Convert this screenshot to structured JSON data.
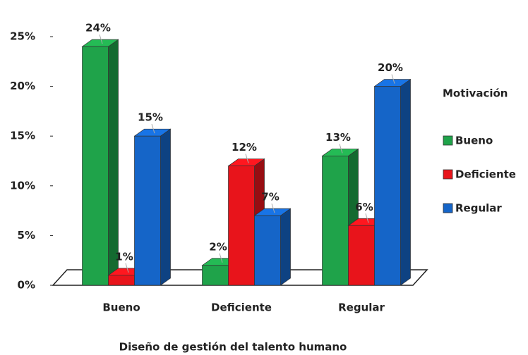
{
  "chart_data": {
    "type": "bar3d",
    "x_label": "Diseño de gestión del talento humano",
    "categories": [
      "Bueno",
      "Deficiente",
      "Regular"
    ],
    "legend_title": "Motivación",
    "series": [
      {
        "name": "Bueno",
        "color": "#1fa34a",
        "values": [
          24,
          2,
          13
        ],
        "value_labels": [
          "24%",
          "2%",
          "13%"
        ]
      },
      {
        "name": "Deficiente",
        "color": "#e8141b",
        "values": [
          1,
          12,
          6
        ],
        "value_labels": [
          "1%",
          "12%",
          "6%"
        ]
      },
      {
        "name": "Regular",
        "color": "#1565c8",
        "values": [
          15,
          7,
          20
        ],
        "value_labels": [
          "15%",
          "7%",
          "20%"
        ]
      }
    ],
    "ylim": [
      0,
      25
    ],
    "yticks": [
      {
        "value": 0,
        "label": "0%"
      },
      {
        "value": 5,
        "label": "5%"
      },
      {
        "value": 10,
        "label": "10%"
      },
      {
        "value": 15,
        "label": "15%"
      },
      {
        "value": 20,
        "label": "20%"
      },
      {
        "value": 25,
        "label": "25%"
      }
    ],
    "legend_position": "right"
  }
}
